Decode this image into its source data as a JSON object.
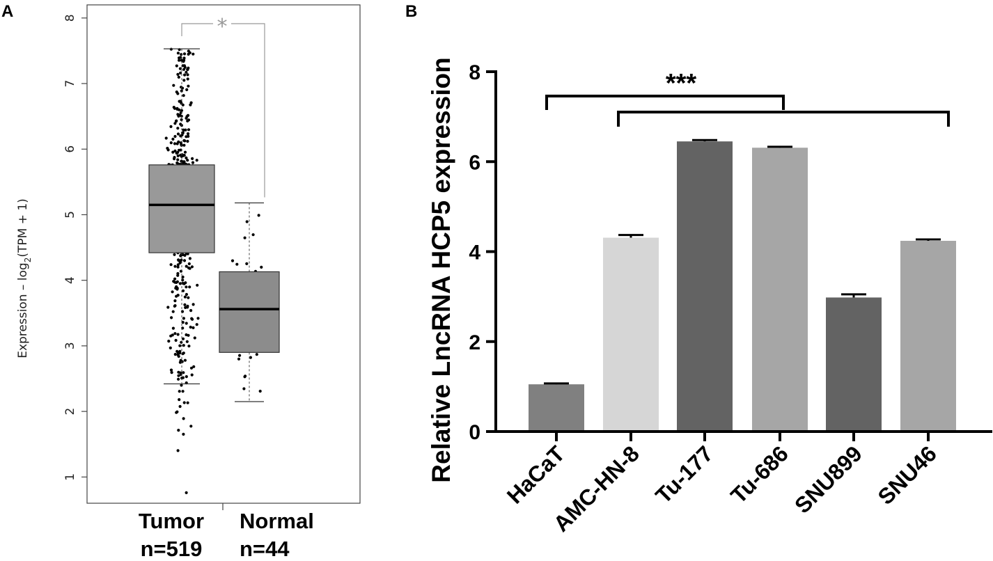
{
  "chart_data": [
    {
      "panel": "A",
      "type": "box",
      "ylabel_main": "Expression – log",
      "ylabel_sub": "2",
      "ylabel_tail": "(TPM + 1)",
      "ylim": [
        0.6,
        8.2
      ],
      "yticks": [
        1,
        2,
        3,
        4,
        5,
        6,
        7,
        8
      ],
      "significance": "*",
      "groups": [
        {
          "name": "Tumor",
          "n_label": "n=519",
          "n": 519,
          "q1": 4.42,
          "median": 5.15,
          "q3": 5.76,
          "whisker_low": 2.42,
          "whisker_high": 7.53,
          "min": 0.76,
          "max": 7.55,
          "color": "#999999"
        },
        {
          "name": "Normal",
          "n_label": "n=44",
          "n": 44,
          "q1": 2.9,
          "median": 3.56,
          "q3": 4.13,
          "whisker_low": 2.15,
          "whisker_high": 5.18,
          "min": 2.15,
          "max": 5.18,
          "color": "#8c8c8c"
        }
      ]
    },
    {
      "panel": "B",
      "type": "bar",
      "ylabel": "Relative LncRNA HCP5 expression",
      "ylim": [
        0,
        8
      ],
      "yticks": [
        0,
        2,
        4,
        6,
        8
      ],
      "significance": "***",
      "categories": [
        "HaCaT",
        "AMC-HN-8",
        "Tu-177",
        "Tu-686",
        "SNU899",
        "SNU46"
      ],
      "values": [
        1.05,
        4.31,
        6.45,
        6.31,
        2.98,
        4.24
      ],
      "errors": [
        0.02,
        0.06,
        0.03,
        0.02,
        0.07,
        0.03
      ],
      "colors": [
        "#808080",
        "#d6d6d6",
        "#636363",
        "#a6a6a6",
        "#636363",
        "#a6a6a6"
      ]
    }
  ],
  "panels": {
    "a": "A",
    "b": "B"
  }
}
